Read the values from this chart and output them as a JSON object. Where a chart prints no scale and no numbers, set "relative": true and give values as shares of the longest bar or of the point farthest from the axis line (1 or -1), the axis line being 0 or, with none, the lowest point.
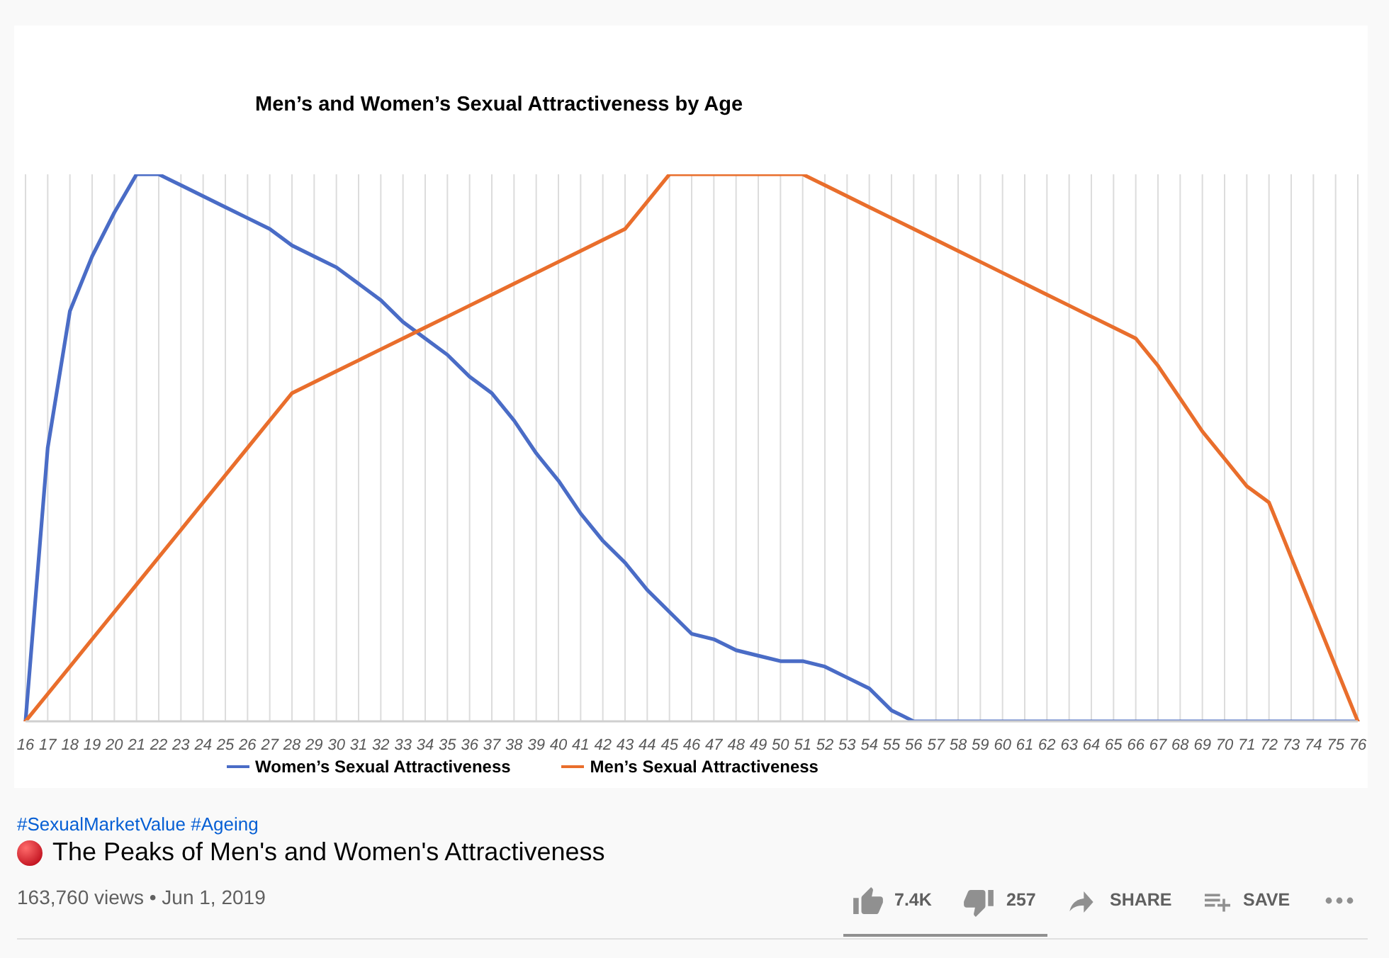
{
  "chart_data": {
    "type": "line",
    "title": "Men’s and Women’s Sexual Attractiveness by Age",
    "categories": [
      "16",
      "17",
      "18",
      "19",
      "20",
      "21",
      "22",
      "23",
      "24",
      "25",
      "26",
      "27",
      "28",
      "29",
      "30",
      "31",
      "32",
      "33",
      "34",
      "35",
      "36",
      "37",
      "38",
      "39",
      "40",
      "41",
      "42",
      "43",
      "44",
      "45",
      "46",
      "47",
      "48",
      "49",
      "50",
      "51",
      "52",
      "53",
      "54",
      "55",
      "56",
      "57",
      "58",
      "59",
      "60",
      "61",
      "62",
      "63",
      "64",
      "65",
      "66",
      "67",
      "68",
      "69",
      "70",
      "71",
      "72",
      "73",
      "74",
      "75",
      "76"
    ],
    "series": [
      {
        "name": "Women’s Sexual Attractiveness",
        "color": "#4a6cc6",
        "values": [
          0,
          0.5,
          0.75,
          0.85,
          0.93,
          1,
          1,
          0.98,
          0.96,
          0.94,
          0.92,
          0.9,
          0.87,
          0.85,
          0.83,
          0.8,
          0.77,
          0.73,
          0.7,
          0.67,
          0.63,
          0.6,
          0.55,
          0.49,
          0.44,
          0.38,
          0.33,
          0.29,
          0.24,
          0.2,
          0.16,
          0.15,
          0.13,
          0.12,
          0.11,
          0.11,
          0.1,
          0.08,
          0.06,
          0.02,
          0,
          0,
          0,
          0,
          0,
          0,
          0,
          0,
          0,
          0,
          0,
          0,
          0,
          0,
          0,
          0,
          0,
          0,
          0,
          0,
          0
        ]
      },
      {
        "name": "Men’s Sexual Attractiveness",
        "color": "#e96e2c",
        "values": [
          0,
          0.05,
          0.1,
          0.15,
          0.2,
          0.25,
          0.3,
          0.35,
          0.4,
          0.45,
          0.5,
          0.55,
          0.6,
          0.62,
          0.64,
          0.66,
          0.68,
          0.7,
          0.72,
          0.74,
          0.76,
          0.78,
          0.8,
          0.82,
          0.84,
          0.86,
          0.88,
          0.9,
          0.95,
          1,
          1,
          1,
          1,
          1,
          1,
          1,
          0.98,
          0.96,
          0.94,
          0.92,
          0.9,
          0.88,
          0.86,
          0.84,
          0.82,
          0.8,
          0.78,
          0.76,
          0.74,
          0.72,
          0.7,
          0.65,
          0.59,
          0.53,
          0.48,
          0.43,
          0.4,
          0.3,
          0.2,
          0.1,
          0
        ]
      }
    ],
    "relative": true,
    "grid": "x",
    "legend": "bottom",
    "line_style": "solid",
    "annotations": [
      "#SexualMarketValue #Ageing",
      "The Peaks of Men's and Women's Attractiveness",
      "163,760 views • Jun 1, 2019",
      "7.4K",
      "257",
      "SHARE",
      "SAVE"
    ]
  }
}
